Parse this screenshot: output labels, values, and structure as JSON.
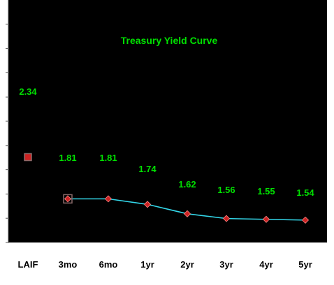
{
  "chart_data": {
    "type": "line",
    "title": "Treasury Yield Curve",
    "categories": [
      "LAIF",
      "3mo",
      "6mo",
      "1yr",
      "2yr",
      "3yr",
      "4yr",
      "5yr"
    ],
    "series": [
      {
        "values": [
          2.34,
          null,
          null,
          null,
          null,
          null,
          null,
          null
        ],
        "marker": "square"
      },
      {
        "values": [
          null,
          1.81,
          1.81,
          1.74,
          1.62,
          1.56,
          1.55,
          1.54
        ],
        "marker": "diamond"
      }
    ],
    "data_labels": [
      "2.34",
      "1.81",
      "1.81",
      "1.74",
      "1.62",
      "1.56",
      "1.55",
      "1.54"
    ],
    "ylim": [
      1.3,
      2.6
    ],
    "grid": false,
    "colors": {
      "plot_background": "#000000",
      "page_background": "#ffffff",
      "title": "#00e000",
      "data_label": "#00e000",
      "line": "#33d6e8",
      "marker_fill": "#cc2222",
      "marker_border": "#8a6a6a"
    }
  }
}
